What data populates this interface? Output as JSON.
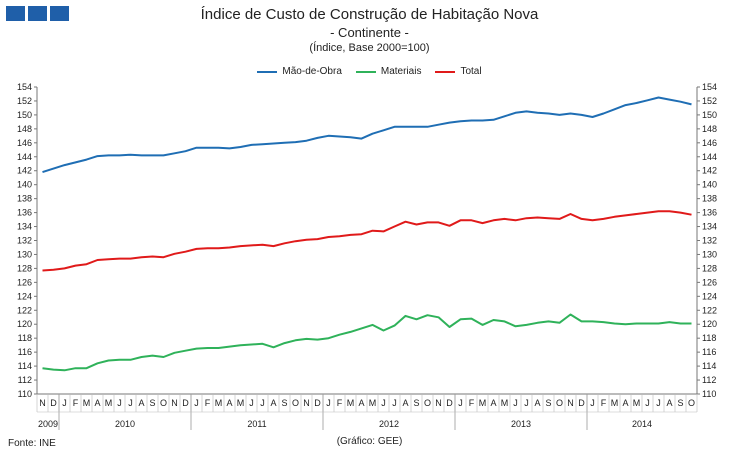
{
  "title": "Índice de Custo de Construção de Habitação Nova",
  "subtitle": "- Continente -",
  "unit_note": "(Índice, Base 2000=100)",
  "source": "Fonte: INE",
  "credit": "(Gráfico: GEE)",
  "chart_data": {
    "type": "line",
    "ylim": [
      110,
      154
    ],
    "ytick_step": 2,
    "grid": false,
    "legend_position": "top-center",
    "x": [
      "N",
      "D",
      "J",
      "F",
      "M",
      "A",
      "M",
      "J",
      "J",
      "A",
      "S",
      "O",
      "N",
      "D",
      "J",
      "F",
      "M",
      "A",
      "M",
      "J",
      "J",
      "A",
      "S",
      "O",
      "N",
      "D",
      "J",
      "F",
      "M",
      "A",
      "M",
      "J",
      "J",
      "A",
      "S",
      "O",
      "N",
      "D",
      "J",
      "F",
      "M",
      "A",
      "M",
      "J",
      "J",
      "A",
      "S",
      "O",
      "N",
      "D",
      "J",
      "F",
      "M",
      "A",
      "M",
      "J",
      "J",
      "A",
      "S",
      "O"
    ],
    "year_labels": [
      {
        "label": "2009",
        "start": 0,
        "end": 1
      },
      {
        "label": "2010",
        "start": 2,
        "end": 13
      },
      {
        "label": "2011",
        "start": 14,
        "end": 25
      },
      {
        "label": "2012",
        "start": 26,
        "end": 37
      },
      {
        "label": "2013",
        "start": 38,
        "end": 49
      },
      {
        "label": "2014",
        "start": 50,
        "end": 59
      }
    ],
    "series": [
      {
        "name": "Mão-de-Obra",
        "color": "#1f6eb4",
        "values": [
          141.8,
          142.3,
          142.8,
          143.2,
          143.6,
          144.1,
          144.2,
          144.2,
          144.3,
          144.2,
          144.2,
          144.2,
          144.5,
          144.8,
          145.3,
          145.3,
          145.3,
          145.2,
          145.4,
          145.7,
          145.8,
          145.9,
          146.0,
          146.1,
          146.3,
          146.7,
          147.0,
          146.9,
          146.8,
          146.6,
          147.3,
          147.8,
          148.3,
          148.3,
          148.3,
          148.3,
          148.6,
          148.9,
          149.1,
          149.2,
          149.2,
          149.3,
          149.8,
          150.3,
          150.5,
          150.3,
          150.2,
          150.0,
          150.2,
          150.0,
          149.7,
          150.2,
          150.8,
          151.4,
          151.7,
          152.1,
          152.5,
          152.2,
          151.9,
          151.5
        ]
      },
      {
        "name": "Materiais",
        "color": "#2fb25a",
        "values": [
          113.7,
          113.5,
          113.4,
          113.7,
          113.7,
          114.4,
          114.8,
          114.9,
          114.9,
          115.3,
          115.5,
          115.3,
          115.9,
          116.2,
          116.5,
          116.6,
          116.6,
          116.8,
          117.0,
          117.1,
          117.2,
          116.7,
          117.3,
          117.7,
          117.9,
          117.8,
          118.0,
          118.5,
          118.9,
          119.4,
          119.9,
          119.1,
          119.8,
          121.2,
          120.7,
          121.3,
          121.0,
          119.6,
          120.7,
          120.8,
          119.9,
          120.6,
          120.4,
          119.7,
          119.9,
          120.2,
          120.4,
          120.2,
          121.4,
          120.4,
          120.4,
          120.3,
          120.1,
          120.0,
          120.1,
          120.1,
          120.1,
          120.3,
          120.1,
          120.1
        ]
      },
      {
        "name": "Total",
        "color": "#e01a1a",
        "values": [
          127.7,
          127.8,
          128.0,
          128.4,
          128.6,
          129.2,
          129.3,
          129.4,
          129.4,
          129.6,
          129.7,
          129.6,
          130.1,
          130.4,
          130.8,
          130.9,
          130.9,
          131.0,
          131.2,
          131.3,
          131.4,
          131.2,
          131.6,
          131.9,
          132.1,
          132.2,
          132.5,
          132.6,
          132.8,
          132.9,
          133.4,
          133.3,
          134.0,
          134.7,
          134.3,
          134.6,
          134.6,
          134.1,
          134.9,
          134.9,
          134.5,
          134.9,
          135.1,
          134.9,
          135.2,
          135.3,
          135.2,
          135.1,
          135.8,
          135.1,
          134.9,
          135.1,
          135.4,
          135.6,
          135.8,
          136.0,
          136.2,
          136.2,
          136.0,
          135.7
        ]
      }
    ]
  }
}
